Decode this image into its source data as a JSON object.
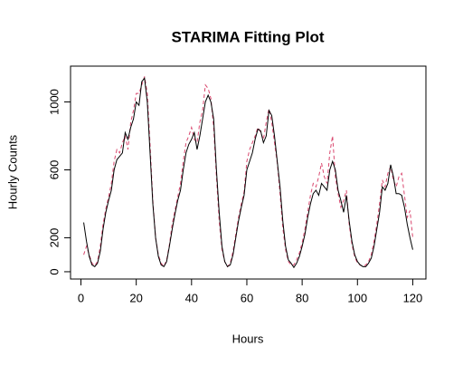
{
  "chart_data": {
    "type": "line",
    "title": "STARIMA Fitting Plot",
    "x_label": "Hours",
    "y_label": "Hourly Counts",
    "x": [
      1,
      2,
      3,
      4,
      5,
      6,
      7,
      8,
      9,
      10,
      11,
      12,
      13,
      14,
      15,
      16,
      17,
      18,
      19,
      20,
      21,
      22,
      23,
      24,
      25,
      26,
      27,
      28,
      29,
      30,
      31,
      32,
      33,
      34,
      35,
      36,
      37,
      38,
      39,
      40,
      41,
      42,
      43,
      44,
      45,
      46,
      47,
      48,
      49,
      50,
      51,
      52,
      53,
      54,
      55,
      56,
      57,
      58,
      59,
      60,
      61,
      62,
      63,
      64,
      65,
      66,
      67,
      68,
      69,
      70,
      71,
      72,
      73,
      74,
      75,
      76,
      77,
      78,
      79,
      80,
      81,
      82,
      83,
      84,
      85,
      86,
      87,
      88,
      89,
      90,
      91,
      92,
      93,
      94,
      95,
      96,
      97,
      98,
      99,
      100,
      101,
      102,
      103,
      104,
      105,
      106,
      107,
      108,
      109,
      110,
      111,
      112,
      113,
      114,
      115,
      116,
      117,
      118,
      119,
      120
    ],
    "series": [
      {
        "color": "#000000",
        "dash": false,
        "values": [
          290,
          180,
          90,
          40,
          30,
          50,
          120,
          250,
          350,
          420,
          480,
          600,
          660,
          680,
          700,
          820,
          780,
          850,
          900,
          1000,
          980,
          1120,
          1140,
          1000,
          700,
          400,
          200,
          90,
          40,
          30,
          60,
          150,
          250,
          340,
          420,
          480,
          600,
          700,
          750,
          780,
          820,
          720,
          800,
          900,
          1000,
          1040,
          1000,
          900,
          600,
          350,
          150,
          60,
          30,
          40,
          100,
          200,
          300,
          380,
          450,
          600,
          650,
          700,
          780,
          840,
          830,
          760,
          800,
          950,
          920,
          800,
          650,
          500,
          300,
          150,
          70,
          50,
          25,
          50,
          90,
          150,
          220,
          320,
          400,
          460,
          480,
          450,
          520,
          500,
          480,
          600,
          650,
          600,
          480,
          420,
          350,
          450,
          300,
          180,
          100,
          60,
          40,
          30,
          30,
          50,
          80,
          150,
          250,
          350,
          500,
          480,
          520,
          630,
          560,
          460,
          460,
          450,
          380,
          280,
          200,
          130
        ]
      },
      {
        "color": "#d9476e",
        "dash": true,
        "values": [
          100,
          150,
          100,
          50,
          35,
          60,
          150,
          280,
          370,
          440,
          520,
          650,
          720,
          700,
          760,
          800,
          720,
          880,
          950,
          1050,
          1050,
          1100,
          1150,
          1050,
          750,
          420,
          200,
          100,
          50,
          30,
          70,
          160,
          280,
          360,
          440,
          520,
          650,
          760,
          800,
          850,
          780,
          760,
          880,
          950,
          1100,
          1080,
          1020,
          850,
          560,
          300,
          130,
          60,
          30,
          50,
          120,
          220,
          320,
          400,
          470,
          650,
          720,
          760,
          800,
          850,
          820,
          780,
          880,
          960,
          880,
          760,
          640,
          460,
          260,
          130,
          60,
          40,
          40,
          70,
          110,
          170,
          250,
          350,
          450,
          520,
          500,
          560,
          640,
          560,
          520,
          700,
          800,
          560,
          460,
          380,
          420,
          480,
          280,
          160,
          90,
          50,
          40,
          30,
          40,
          60,
          100,
          180,
          280,
          400,
          540,
          500,
          580,
          620,
          540,
          500,
          560,
          580,
          450,
          320,
          360,
          200
        ]
      }
    ],
    "xlim": [
      -3.76,
      124.76
    ],
    "xticks": [
      0,
      20,
      40,
      60,
      80,
      100,
      120
    ],
    "ylim": [
      -43,
      1211
    ],
    "yticks": [
      0,
      200,
      600,
      1000
    ]
  }
}
